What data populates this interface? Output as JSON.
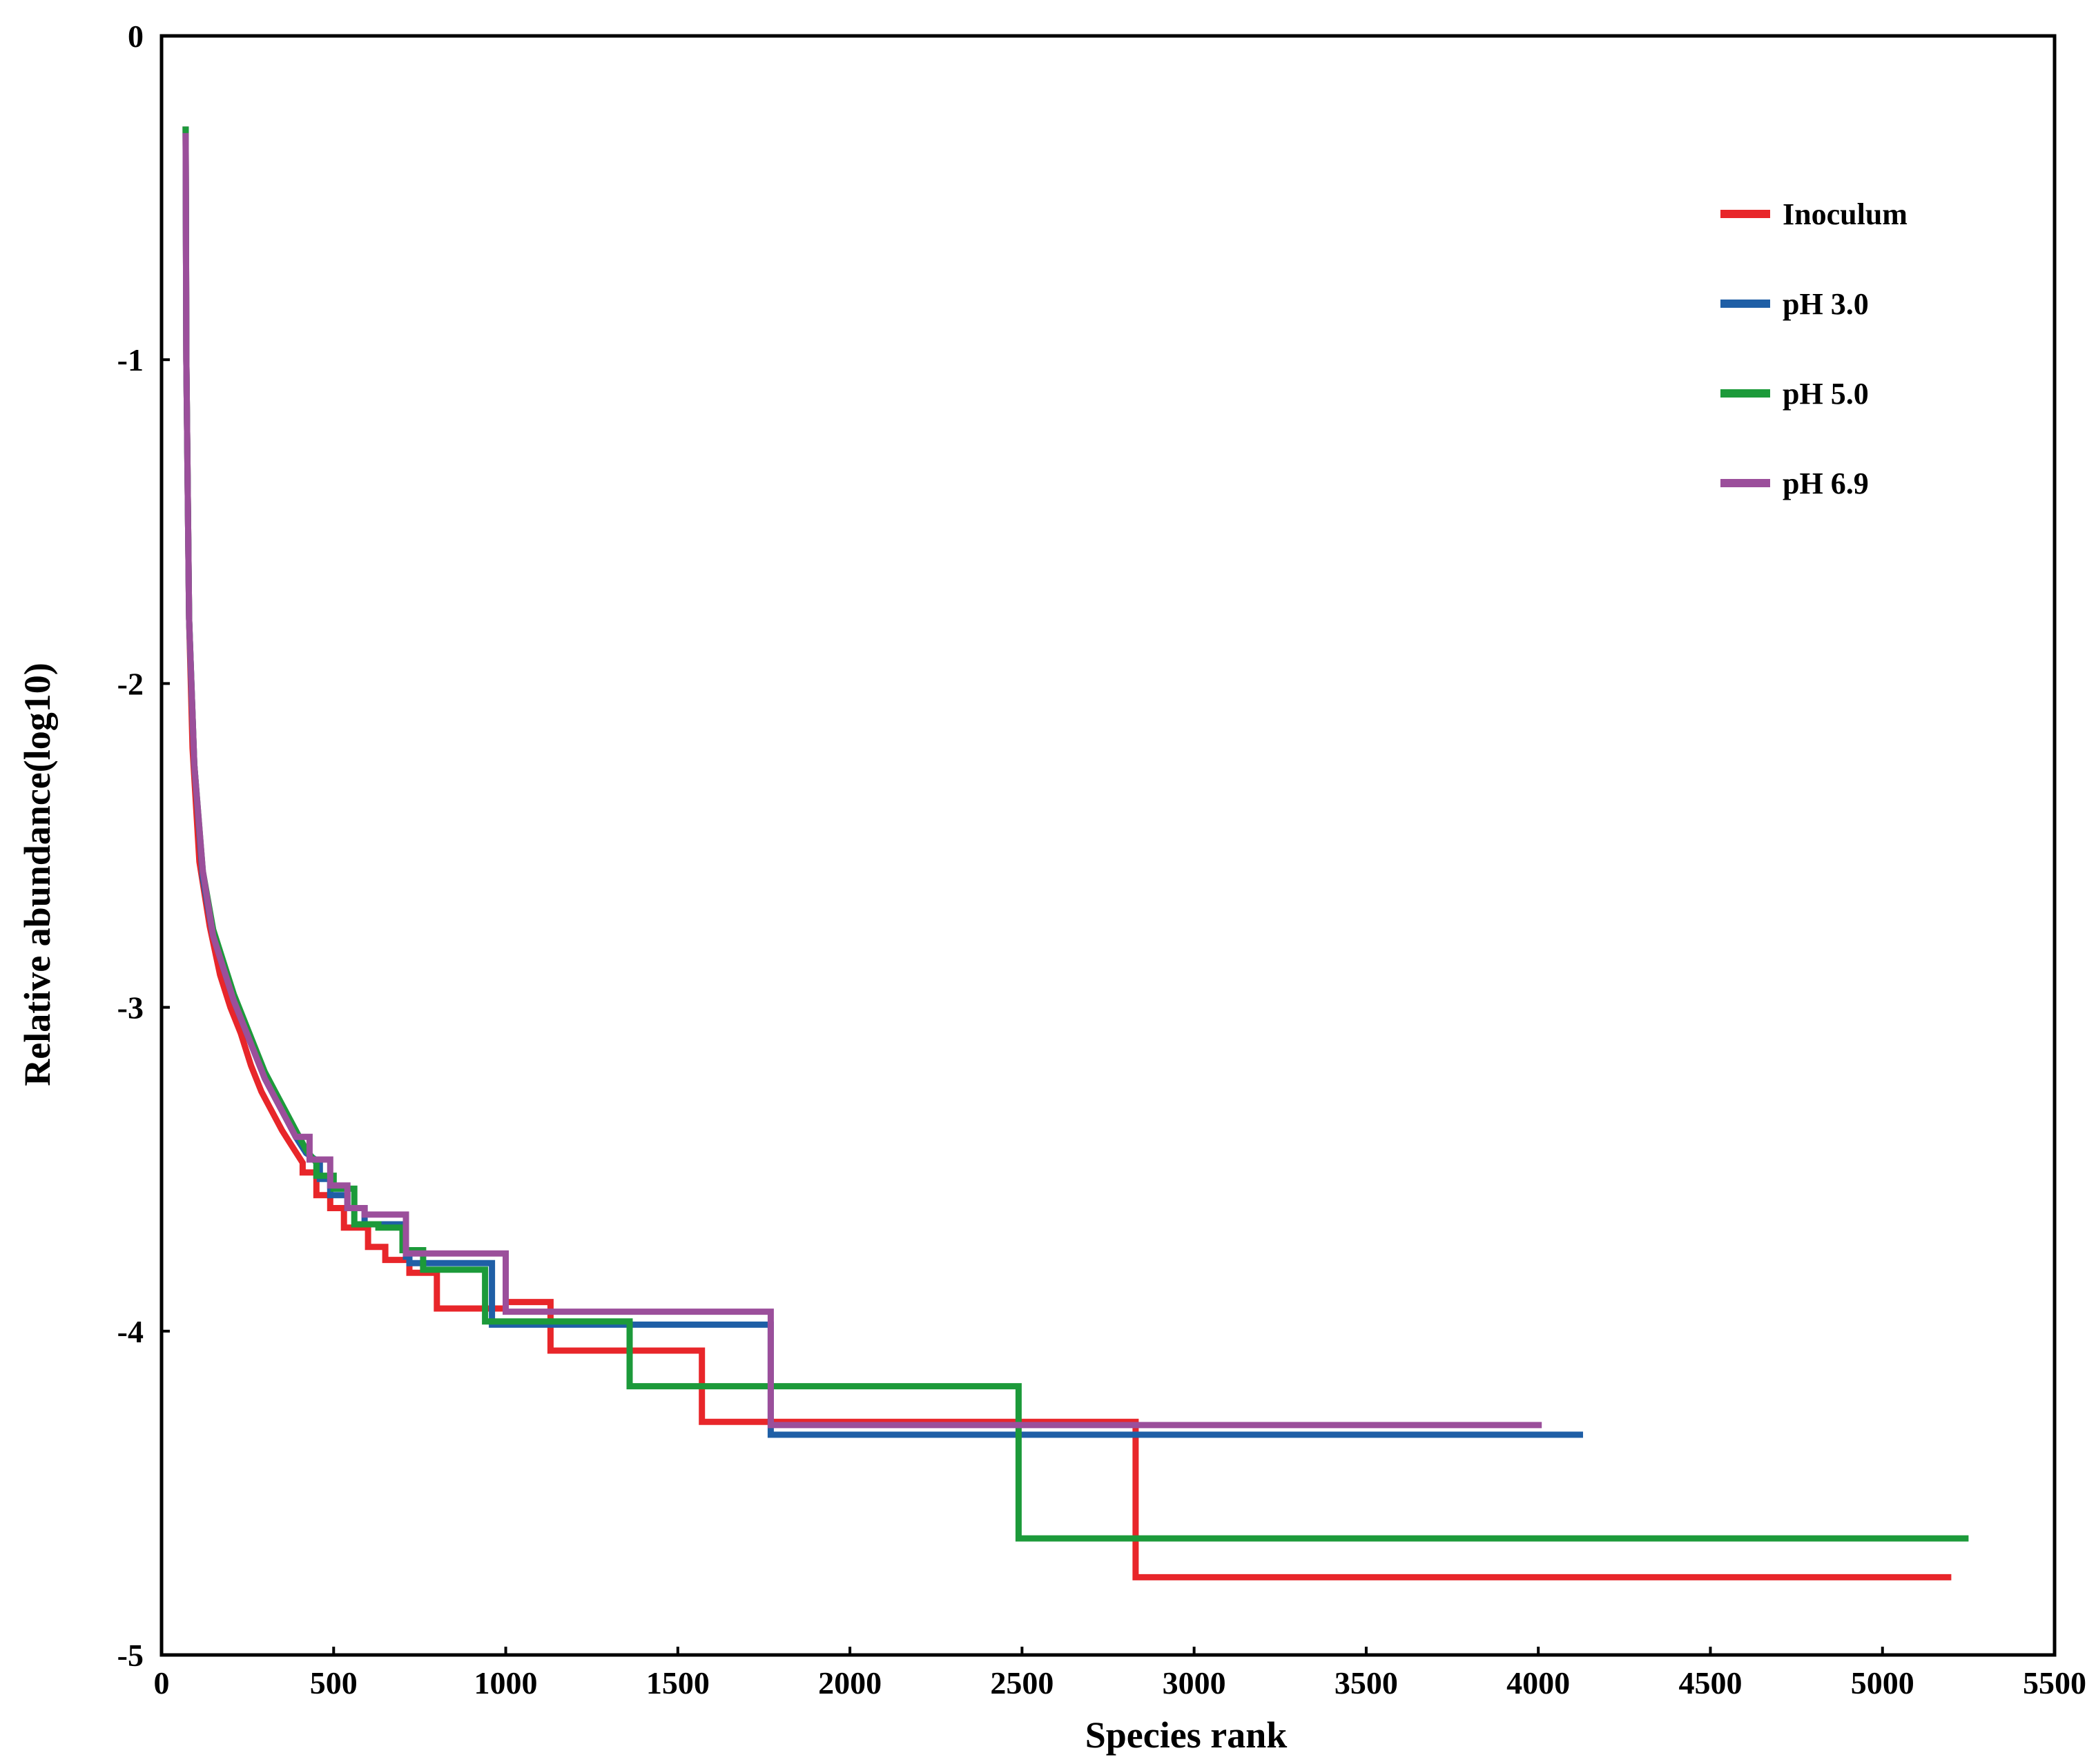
{
  "chart_data": {
    "type": "line",
    "title": "",
    "xlabel": "Species rank",
    "ylabel": "Relative abundance(log10)",
    "xlim": [
      0,
      5500
    ],
    "ylim": [
      -5,
      0
    ],
    "x_ticks": [
      0,
      500,
      1000,
      1500,
      2000,
      2500,
      3000,
      3500,
      4000,
      4500,
      5000,
      5500
    ],
    "x_tick_labels": [
      "0",
      "500",
      "1000",
      "1500",
      "2000",
      "2500",
      "3000",
      "3500",
      "4000",
      "4500",
      "5000",
      "5500"
    ],
    "y_ticks": [
      0,
      -1,
      -2,
      -3,
      -4,
      -5
    ],
    "y_tick_labels": [
      "0",
      "-1",
      "-2",
      "-3",
      "-4",
      "-5"
    ],
    "grid": false,
    "legend_position": "top-right",
    "series": [
      {
        "name": "Inoculum",
        "color": "#e8262a",
        "points": [
          [
            70,
            -0.28
          ],
          [
            72,
            -1.0
          ],
          [
            80,
            -1.8
          ],
          [
            90,
            -2.2
          ],
          [
            110,
            -2.55
          ],
          [
            140,
            -2.75
          ],
          [
            170,
            -2.9
          ],
          [
            200,
            -3.0
          ],
          [
            230,
            -3.08
          ],
          [
            260,
            -3.18
          ],
          [
            290,
            -3.26
          ],
          [
            320,
            -3.32
          ],
          [
            350,
            -3.38
          ],
          [
            380,
            -3.43
          ],
          [
            410,
            -3.48
          ],
          [
            410,
            -3.51
          ],
          [
            450,
            -3.51
          ],
          [
            450,
            -3.58
          ],
          [
            490,
            -3.58
          ],
          [
            490,
            -3.62
          ],
          [
            530,
            -3.62
          ],
          [
            530,
            -3.68
          ],
          [
            600,
            -3.68
          ],
          [
            600,
            -3.74
          ],
          [
            650,
            -3.74
          ],
          [
            650,
            -3.78
          ],
          [
            720,
            -3.78
          ],
          [
            720,
            -3.82
          ],
          [
            800,
            -3.82
          ],
          [
            800,
            -3.93
          ],
          [
            1000,
            -3.93
          ],
          [
            1000,
            -3.91
          ],
          [
            1130,
            -3.91
          ],
          [
            1130,
            -4.06
          ],
          [
            1570,
            -4.06
          ],
          [
            1570,
            -4.28
          ],
          [
            2830,
            -4.28
          ],
          [
            2830,
            -4.76
          ],
          [
            5200,
            -4.76
          ]
        ]
      },
      {
        "name": "pH 3.0",
        "color": "#1f5fa6",
        "points": [
          [
            70,
            -0.28
          ],
          [
            72,
            -1.0
          ],
          [
            80,
            -1.8
          ],
          [
            95,
            -2.25
          ],
          [
            120,
            -2.6
          ],
          [
            150,
            -2.78
          ],
          [
            180,
            -2.88
          ],
          [
            210,
            -2.98
          ],
          [
            240,
            -3.06
          ],
          [
            270,
            -3.14
          ],
          [
            300,
            -3.22
          ],
          [
            330,
            -3.28
          ],
          [
            360,
            -3.34
          ],
          [
            390,
            -3.4
          ],
          [
            420,
            -3.45
          ],
          [
            460,
            -3.48
          ],
          [
            460,
            -3.53
          ],
          [
            490,
            -3.53
          ],
          [
            490,
            -3.58
          ],
          [
            540,
            -3.58
          ],
          [
            540,
            -3.62
          ],
          [
            590,
            -3.62
          ],
          [
            590,
            -3.67
          ],
          [
            710,
            -3.67
          ],
          [
            710,
            -3.77
          ],
          [
            720,
            -3.77
          ],
          [
            720,
            -3.79
          ],
          [
            960,
            -3.79
          ],
          [
            960,
            -3.98
          ],
          [
            1770,
            -3.98
          ],
          [
            1770,
            -4.32
          ],
          [
            4130,
            -4.32
          ]
        ]
      },
      {
        "name": "pH 5.0",
        "color": "#1c9a3a",
        "points": [
          [
            70,
            -0.28
          ],
          [
            72,
            -1.0
          ],
          [
            80,
            -1.8
          ],
          [
            95,
            -2.25
          ],
          [
            120,
            -2.58
          ],
          [
            150,
            -2.76
          ],
          [
            180,
            -2.86
          ],
          [
            210,
            -2.96
          ],
          [
            240,
            -3.04
          ],
          [
            270,
            -3.12
          ],
          [
            300,
            -3.2
          ],
          [
            330,
            -3.26
          ],
          [
            360,
            -3.32
          ],
          [
            390,
            -3.38
          ],
          [
            420,
            -3.44
          ],
          [
            450,
            -3.48
          ],
          [
            450,
            -3.52
          ],
          [
            500,
            -3.52
          ],
          [
            500,
            -3.56
          ],
          [
            560,
            -3.56
          ],
          [
            560,
            -3.67
          ],
          [
            630,
            -3.67
          ],
          [
            630,
            -3.68
          ],
          [
            700,
            -3.68
          ],
          [
            700,
            -3.75
          ],
          [
            760,
            -3.75
          ],
          [
            760,
            -3.81
          ],
          [
            940,
            -3.81
          ],
          [
            940,
            -3.97
          ],
          [
            1360,
            -3.97
          ],
          [
            1360,
            -4.17
          ],
          [
            2490,
            -4.17
          ],
          [
            2490,
            -4.64
          ],
          [
            5250,
            -4.64
          ]
        ]
      },
      {
        "name": "pH 6.9",
        "color": "#9b4f9b",
        "points": [
          [
            70,
            -0.3
          ],
          [
            72,
            -1.0
          ],
          [
            80,
            -1.8
          ],
          [
            95,
            -2.25
          ],
          [
            120,
            -2.58
          ],
          [
            150,
            -2.78
          ],
          [
            180,
            -2.88
          ],
          [
            210,
            -2.98
          ],
          [
            240,
            -3.06
          ],
          [
            270,
            -3.14
          ],
          [
            300,
            -3.22
          ],
          [
            330,
            -3.28
          ],
          [
            360,
            -3.34
          ],
          [
            390,
            -3.4
          ],
          [
            430,
            -3.4
          ],
          [
            430,
            -3.47
          ],
          [
            490,
            -3.47
          ],
          [
            490,
            -3.55
          ],
          [
            540,
            -3.55
          ],
          [
            540,
            -3.62
          ],
          [
            590,
            -3.62
          ],
          [
            590,
            -3.64
          ],
          [
            710,
            -3.64
          ],
          [
            710,
            -3.76
          ],
          [
            1000,
            -3.76
          ],
          [
            1000,
            -3.94
          ],
          [
            1770,
            -3.94
          ],
          [
            1770,
            -4.29
          ],
          [
            4010,
            -4.29
          ]
        ]
      }
    ]
  }
}
